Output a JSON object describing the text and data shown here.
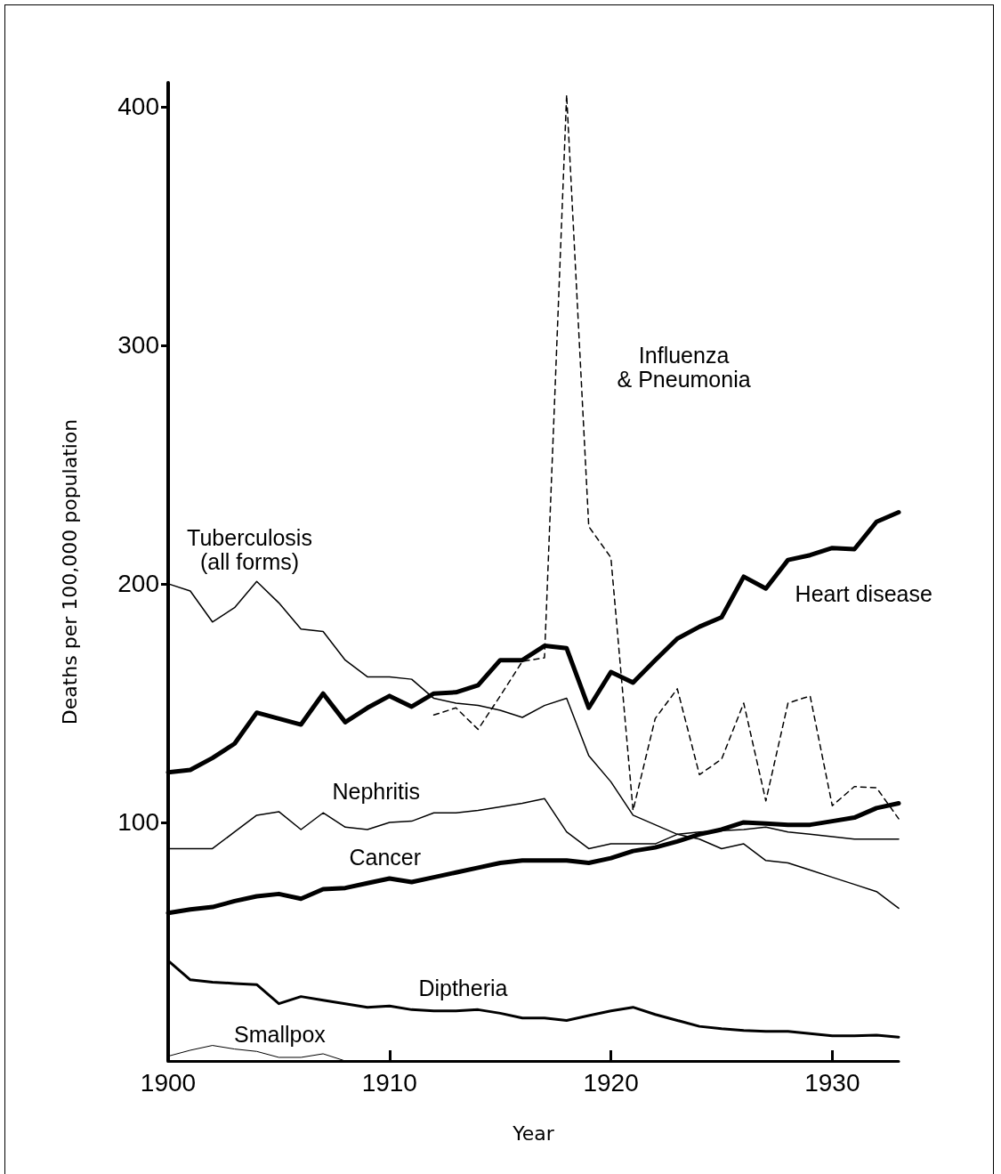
{
  "chart_data": {
    "type": "line",
    "xlabel": "Year",
    "ylabel": "Deaths per 100,000 population",
    "x": [
      1900,
      1901,
      1902,
      1903,
      1904,
      1905,
      1906,
      1907,
      1908,
      1909,
      1910,
      1911,
      1912,
      1913,
      1914,
      1915,
      1916,
      1917,
      1918,
      1919,
      1920,
      1921,
      1922,
      1923,
      1924,
      1925,
      1926,
      1927,
      1928,
      1929,
      1930,
      1931,
      1932,
      1933
    ],
    "xlim": [
      1900,
      1933
    ],
    "xticks": [
      1900,
      1910,
      1920,
      1930
    ],
    "ylim": [
      0,
      410
    ],
    "yticks": [
      100,
      200,
      300,
      400
    ],
    "grid": false,
    "legend": false,
    "marker": "none",
    "line_style": "solid",
    "series": [
      {
        "name": "Tuberculosis\n(all forms)",
        "color": "#000000",
        "values": [
          200,
          197,
          184,
          190,
          201,
          192,
          181,
          180,
          168,
          161,
          161,
          160,
          152,
          150,
          149,
          147,
          144,
          149,
          152,
          128,
          117,
          103,
          99,
          95,
          93,
          89,
          91,
          84,
          83,
          80,
          77,
          74,
          71,
          64
        ]
      },
      {
        "name": "Heart disease",
        "color": "#000000",
        "values": [
          121,
          122,
          127,
          133,
          146,
          143.5,
          141,
          154,
          142,
          148,
          153,
          148.5,
          154,
          154.5,
          157.5,
          168,
          168,
          174,
          173,
          148,
          163,
          158.6,
          168,
          177,
          182,
          186,
          203,
          198,
          210,
          212,
          215,
          214.5,
          226,
          230
        ]
      },
      {
        "name": "Nephritis",
        "color": "#000000",
        "values": [
          89,
          89,
          89,
          96,
          103,
          104.5,
          97,
          104,
          98,
          97,
          100,
          100.5,
          104,
          104,
          105,
          106.5,
          108,
          110,
          96,
          89,
          91,
          91,
          91,
          95,
          96,
          96.5,
          97,
          98,
          96,
          95,
          94,
          93,
          93,
          93
        ]
      },
      {
        "name": "Cancer",
        "color": "#000000",
        "values": [
          62,
          63.5,
          64.5,
          67,
          69,
          70,
          68,
          72,
          72.5,
          74.5,
          76.5,
          75,
          77,
          79,
          81,
          83,
          84,
          84,
          84,
          83,
          85,
          88,
          89.5,
          92,
          95,
          97,
          100,
          99.5,
          99,
          99,
          100.5,
          102,
          106,
          108
        ]
      },
      {
        "name": "Diptheria",
        "color": "#000000",
        "values": [
          42,
          34,
          33,
          32.5,
          32,
          24,
          27,
          25.5,
          24,
          22.5,
          23,
          21.5,
          21,
          21,
          21.5,
          20,
          18,
          18,
          17,
          19,
          21,
          22.5,
          19.5,
          17,
          14.5,
          13.5,
          12.8,
          12.4,
          12.4,
          11.5,
          10.5,
          10.5,
          10.8,
          10
        ]
      },
      {
        "name": "Influenza\n& Pneumonia",
        "color": "#000000",
        "line_style": "dashed",
        "x": [
          1912,
          1913,
          1914,
          1915,
          1916,
          1917,
          1918,
          1919,
          1920,
          1921,
          1922,
          1923,
          1924,
          1925,
          1926,
          1927,
          1928,
          1929,
          1930,
          1931,
          1932,
          1933
        ],
        "values": [
          145,
          148,
          139,
          153,
          167.5,
          169,
          405,
          224,
          211,
          105,
          143.5,
          156,
          120,
          126.5,
          150,
          109,
          150,
          153,
          107,
          115,
          114.5,
          101.5
        ]
      },
      {
        "name": "Smallpox",
        "color": "#000000",
        "x": [
          1900,
          1901,
          1902,
          1903,
          1904,
          1905,
          1906,
          1907,
          1908
        ],
        "values": [
          2,
          4.5,
          6.5,
          5,
          4,
          1.5,
          1.5,
          3,
          0
        ]
      }
    ]
  }
}
